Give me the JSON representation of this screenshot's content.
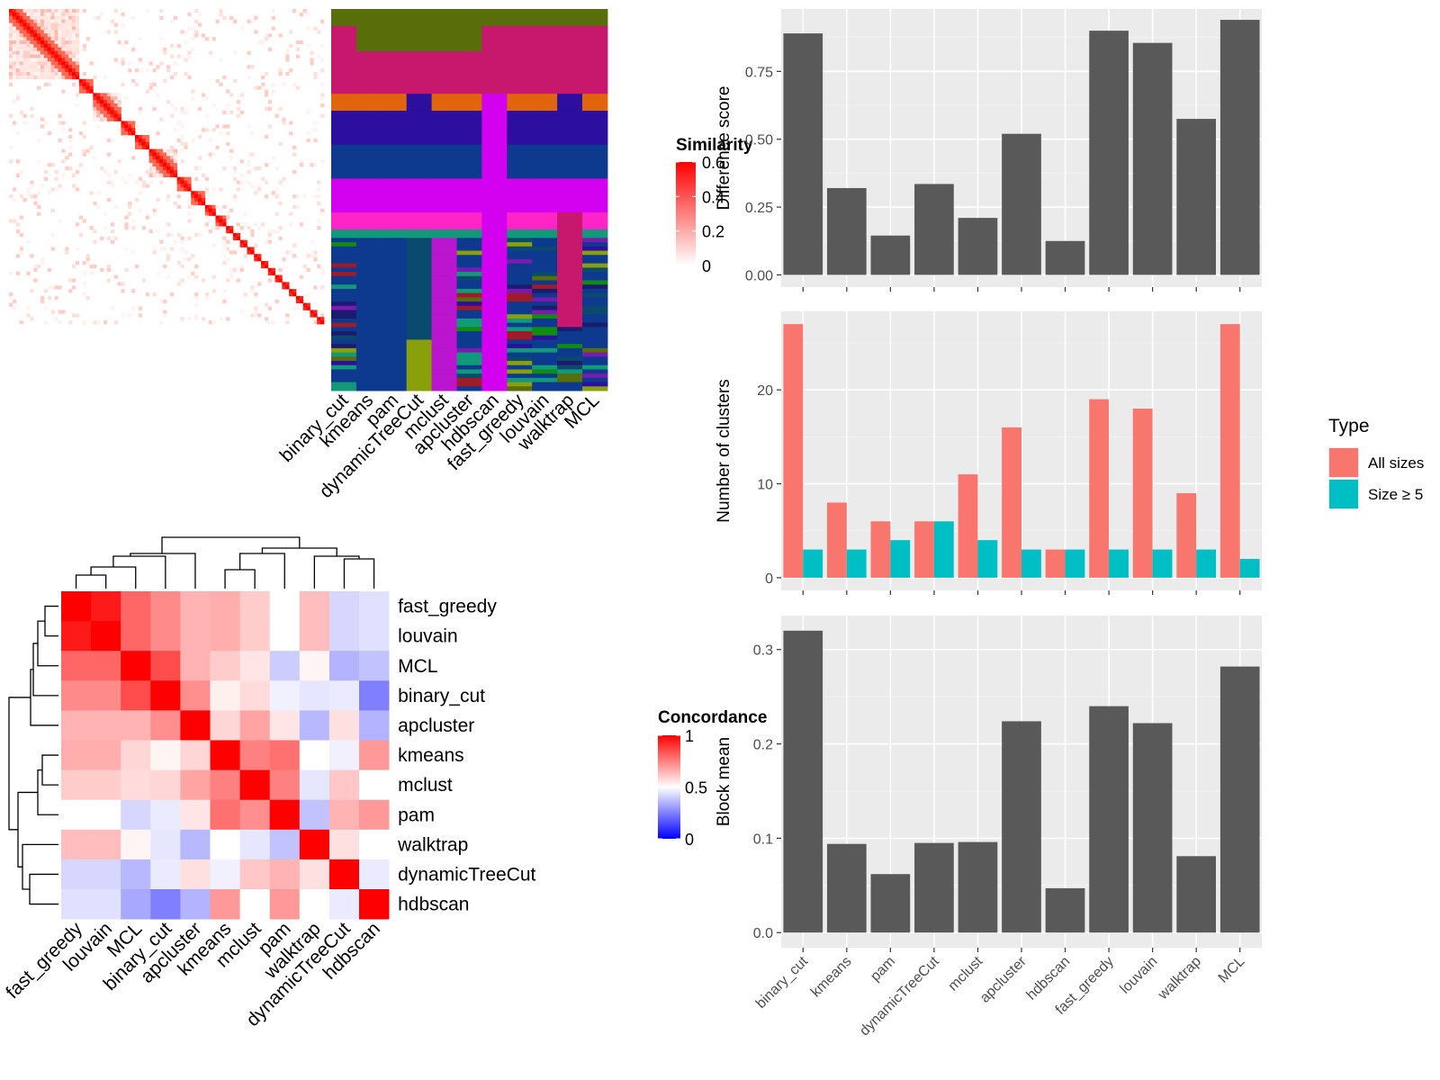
{
  "chart_data": [
    {
      "type": "heatmap",
      "panel": "cell-similarity",
      "legend": {
        "title": "Similarity",
        "ticks": [
          0,
          0.2,
          0.4,
          0.6
        ],
        "range": [
          0,
          0.6
        ]
      },
      "notes": "Cell-by-cell similarity heatmap; 90 cells ordered by cluster, strong diagonal blocks"
    },
    {
      "type": "heatmap",
      "panel": "cluster-assignments",
      "columns": [
        "binary_cut",
        "kmeans",
        "pam",
        "dynamicTreeCut",
        "mclust",
        "apcluster",
        "hdbscan",
        "fast_greedy",
        "louvain",
        "walktrap",
        "MCL"
      ],
      "notes": "Categorical cluster labels per cell for each method"
    },
    {
      "type": "heatmap",
      "panel": "method-concordance",
      "legend": {
        "title": "Concordance",
        "ticks": [
          0,
          0.5,
          1
        ],
        "range": [
          0,
          1
        ]
      },
      "rows": [
        "fast_greedy",
        "louvain",
        "MCL",
        "binary_cut",
        "apcluster",
        "kmeans",
        "mclust",
        "pam",
        "walktrap",
        "dynamicTreeCut",
        "hdbscan"
      ],
      "columns": [
        "fast_greedy",
        "louvain",
        "MCL",
        "binary_cut",
        "apcluster",
        "kmeans",
        "mclust",
        "pam",
        "walktrap",
        "dynamicTreeCut",
        "hdbscan"
      ],
      "matrix": [
        [
          1.0,
          0.95,
          0.8,
          0.73,
          0.65,
          0.66,
          0.6,
          0.5,
          0.63,
          0.42,
          0.44
        ],
        [
          0.95,
          1.0,
          0.8,
          0.73,
          0.65,
          0.66,
          0.6,
          0.5,
          0.63,
          0.42,
          0.44
        ],
        [
          0.8,
          0.8,
          1.0,
          0.85,
          0.65,
          0.6,
          0.55,
          0.4,
          0.52,
          0.35,
          0.38
        ],
        [
          0.73,
          0.73,
          0.85,
          1.0,
          0.72,
          0.53,
          0.57,
          0.47,
          0.45,
          0.46,
          0.25
        ],
        [
          0.65,
          0.65,
          0.65,
          0.72,
          1.0,
          0.58,
          0.68,
          0.55,
          0.36,
          0.56,
          0.35
        ],
        [
          0.66,
          0.66,
          0.58,
          0.52,
          0.58,
          1.0,
          0.75,
          0.78,
          0.5,
          0.47,
          0.7
        ],
        [
          0.6,
          0.6,
          0.57,
          0.58,
          0.68,
          0.75,
          1.0,
          0.75,
          0.45,
          0.61,
          0.5
        ],
        [
          0.5,
          0.5,
          0.42,
          0.46,
          0.55,
          0.78,
          0.72,
          1.0,
          0.38,
          0.65,
          0.7
        ],
        [
          0.63,
          0.63,
          0.52,
          0.45,
          0.36,
          0.5,
          0.45,
          0.38,
          1.0,
          0.56,
          0.5
        ],
        [
          0.42,
          0.42,
          0.36,
          0.46,
          0.56,
          0.47,
          0.61,
          0.65,
          0.56,
          1.0,
          0.46
        ],
        [
          0.44,
          0.44,
          0.33,
          0.25,
          0.35,
          0.7,
          0.5,
          0.7,
          0.5,
          0.46,
          1.0
        ]
      ]
    },
    {
      "type": "bar",
      "panel": "difference-score",
      "categories": [
        "binary_cut",
        "kmeans",
        "pam",
        "dynamicTreeCut",
        "mclust",
        "apcluster",
        "hdbscan",
        "fast_greedy",
        "louvain",
        "walktrap",
        "MCL"
      ],
      "values": [
        0.89,
        0.32,
        0.145,
        0.335,
        0.21,
        0.52,
        0.125,
        0.9,
        0.855,
        0.575,
        0.94
      ],
      "ylabel": "Difference score",
      "ylim": [
        -0.045,
        0.98
      ],
      "yticks": [
        "0.00",
        "0.25",
        "0.50",
        "0.75"
      ],
      "color": "#595959"
    },
    {
      "type": "bar",
      "panel": "number-of-clusters",
      "categories": [
        "binary_cut",
        "kmeans",
        "pam",
        "dynamicTreeCut",
        "mclust",
        "apcluster",
        "hdbscan",
        "fast_greedy",
        "louvain",
        "walktrap",
        "MCL"
      ],
      "series": [
        {
          "name": "All sizes",
          "color": "#F8766D",
          "values": [
            27,
            8,
            6,
            6,
            11,
            16,
            3,
            19,
            18,
            9,
            27
          ]
        },
        {
          "name": "Size ≥ 5",
          "color": "#00BFC4",
          "values": [
            3,
            3,
            4,
            6,
            4,
            3,
            3,
            3,
            3,
            3,
            2
          ]
        }
      ],
      "ylabel": "Number of clusters",
      "ylim": [
        -1.35,
        28.35
      ],
      "yticks": [
        "0",
        "10",
        "20"
      ],
      "legend": {
        "title": "Type",
        "position": "right"
      }
    },
    {
      "type": "bar",
      "panel": "block-mean",
      "categories": [
        "binary_cut",
        "kmeans",
        "pam",
        "dynamicTreeCut",
        "mclust",
        "apcluster",
        "hdbscan",
        "fast_greedy",
        "louvain",
        "walktrap",
        "MCL"
      ],
      "values": [
        0.32,
        0.094,
        0.062,
        0.095,
        0.096,
        0.224,
        0.047,
        0.24,
        0.222,
        0.081,
        0.282
      ],
      "ylabel": "Block mean",
      "ylim": [
        -0.016,
        0.336
      ],
      "yticks": [
        "0.0",
        "0.1",
        "0.2",
        "0.3"
      ],
      "color": "#595959"
    }
  ]
}
